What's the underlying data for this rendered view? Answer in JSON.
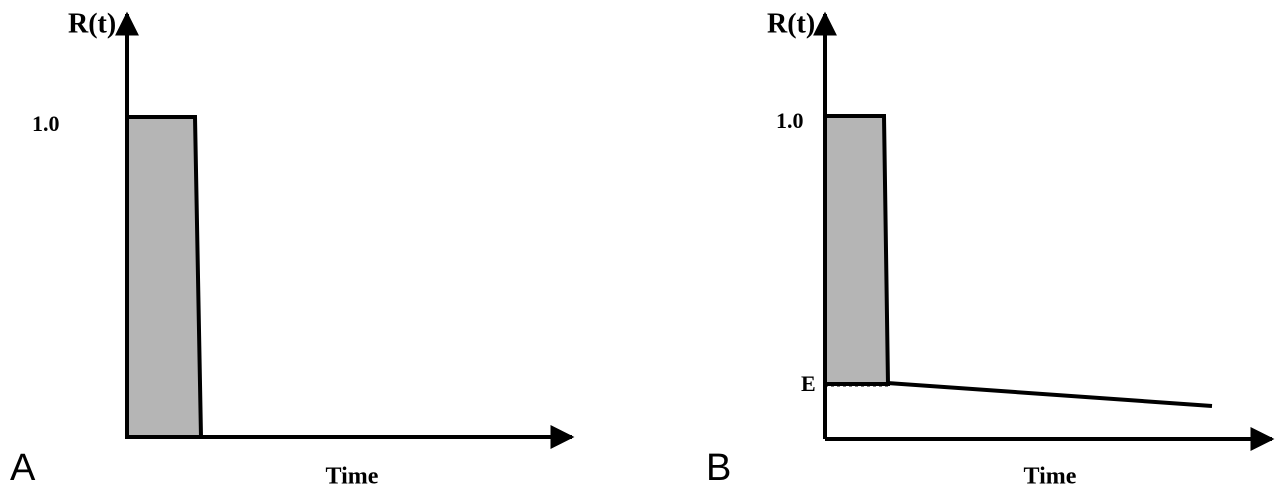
{
  "panels": [
    {
      "label": "A",
      "y_axis_label": "R(t)",
      "y_tick": "1.0",
      "x_axis_label": "Time"
    },
    {
      "label": "B",
      "y_axis_label": "R(t)",
      "y_tick": "1.0",
      "x_axis_label": "Time",
      "level_label": "E"
    }
  ]
}
